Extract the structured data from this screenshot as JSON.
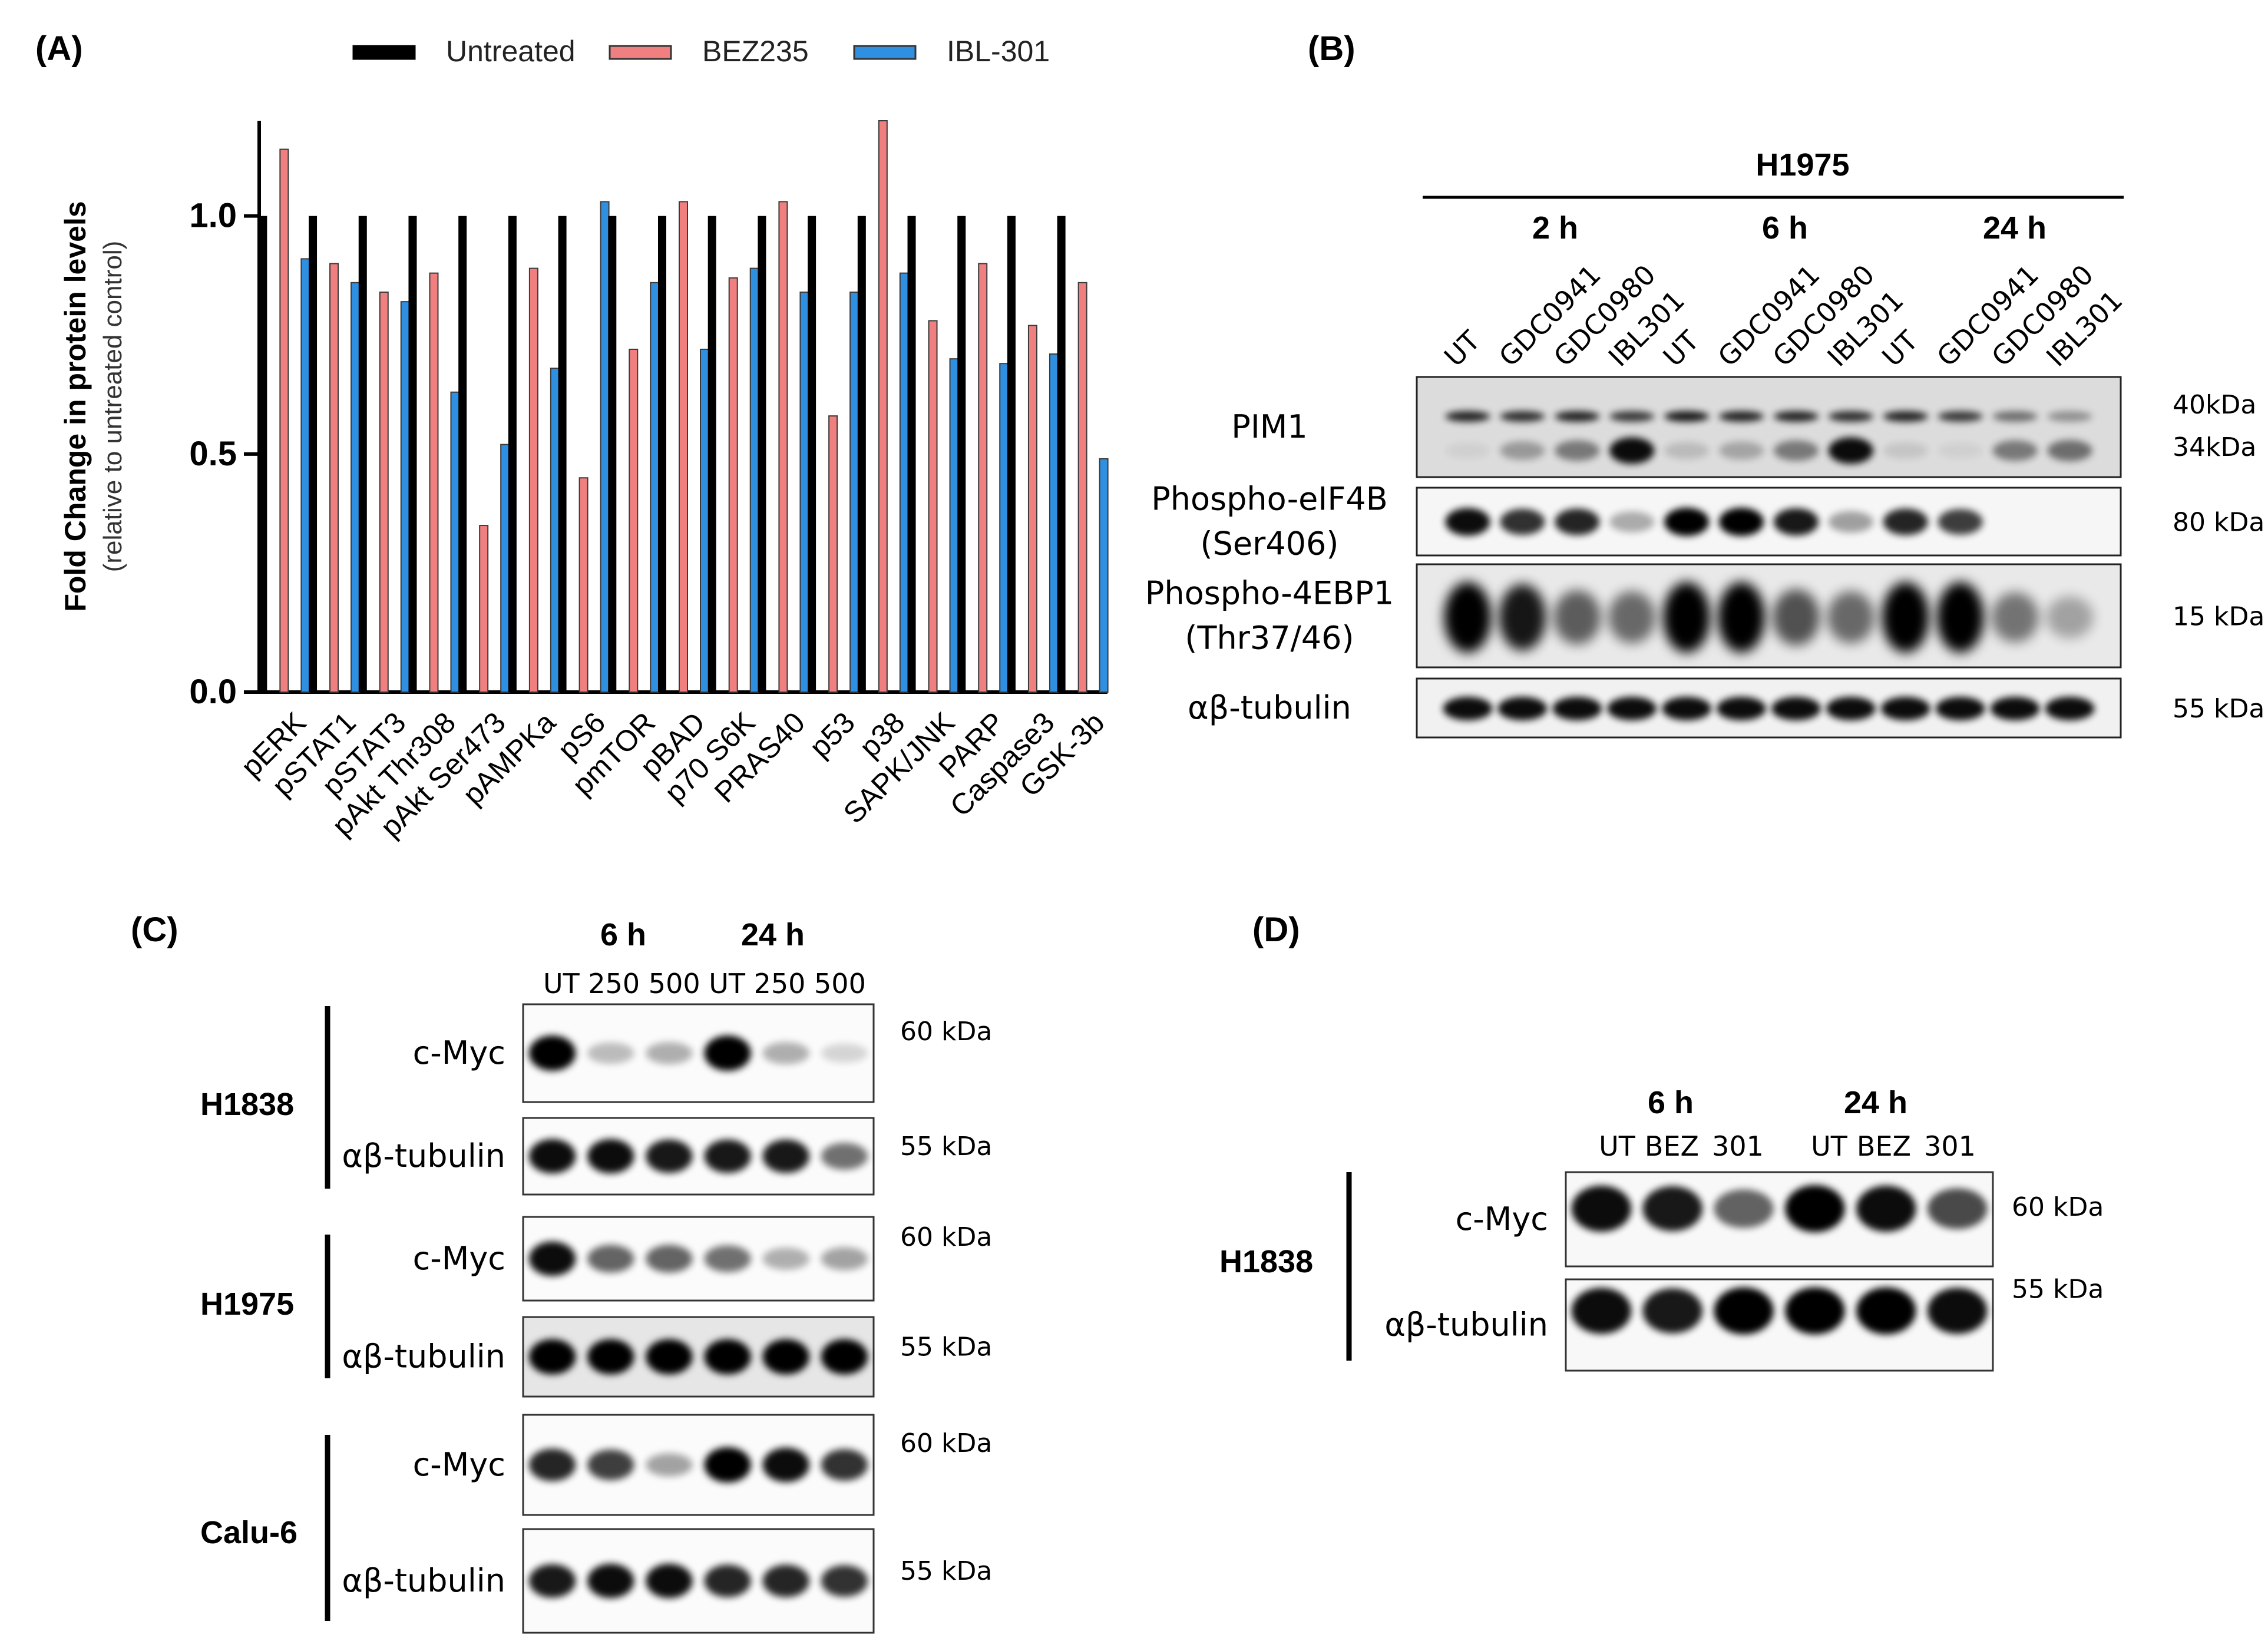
{
  "panels": {
    "A": {
      "label": "(A)"
    },
    "B": {
      "label": "(B)",
      "cell_line": "H1975",
      "timepoints": [
        "2 h",
        "6 h",
        "24 h"
      ],
      "lanes": [
        "UT",
        "GDC0941",
        "GDC0980",
        "IBL301",
        "UT",
        "GDC0941",
        "GDC0980",
        "IBL301",
        "UT",
        "GDC0941",
        "GDC0980",
        "IBL301"
      ],
      "blots": [
        {
          "name": "PIM1",
          "lines": [
            "PIM1"
          ],
          "sizes": [
            "40kDa",
            "34kDa"
          ]
        },
        {
          "name": "Phospho-eIF4B",
          "lines": [
            "Phospho-eIF4B",
            "(Ser406)"
          ],
          "sizes": [
            "80 kDa"
          ]
        },
        {
          "name": "Phospho-4EBP1",
          "lines": [
            "Phospho-4EBP1",
            "(Thr37/46)"
          ],
          "sizes": [
            "15 kDa"
          ]
        },
        {
          "name": "ab-tubulin",
          "lines": [
            "αβ-tubulin"
          ],
          "sizes": [
            "55 kDa"
          ]
        }
      ]
    },
    "C": {
      "label": "(C)",
      "timepoints": [
        "6 h",
        "24 h"
      ],
      "lanes_text": "UT 250 500 UT 250 500",
      "cell_lines": [
        {
          "name": "H1838",
          "blots": [
            {
              "protein": "c-Myc",
              "size": "60 kDa"
            },
            {
              "protein": "αβ-tubulin",
              "size": "55 kDa"
            }
          ]
        },
        {
          "name": "H1975",
          "blots": [
            {
              "protein": "c-Myc",
              "size": "60 kDa"
            },
            {
              "protein": "αβ-tubulin",
              "size": "55 kDa"
            }
          ]
        },
        {
          "name": "Calu-6",
          "blots": [
            {
              "protein": "c-Myc",
              "size": "60 kDa"
            },
            {
              "protein": "αβ-tubulin",
              "size": "55 kDa"
            }
          ]
        }
      ]
    },
    "D": {
      "label": "(D)",
      "cell_line": "H1838",
      "timepoints": [
        "6 h",
        "24 h"
      ],
      "lanes": [
        "UT",
        "BEZ",
        "301",
        "UT",
        "BEZ",
        "301"
      ],
      "blots": [
        {
          "protein": "c-Myc",
          "size": "60 kDa"
        },
        {
          "protein": "αβ-tubulin",
          "size": "55 kDa"
        }
      ]
    }
  },
  "chart_data": {
    "type": "bar",
    "title": "",
    "ylabel": "Fold Change in protein levels",
    "ylabel_sub": "(relative to untreated control)",
    "xlabel": "",
    "ylim": [
      0,
      1.2
    ],
    "yticks": [
      0.0,
      0.5,
      1.0
    ],
    "ytick_labels": [
      "0.0",
      "0.5",
      "1.0"
    ],
    "legend_position": "top",
    "categories": [
      "pERK",
      "pSTAT1",
      "pSTAT3",
      "pAkt Thr308",
      "pAkt Ser473",
      "pAMPKa",
      "pS6",
      "pmTOR",
      "pBAD",
      "p70 S6K",
      "PRAS40",
      "p53",
      "p38",
      "SAPK/JNK",
      "PARP",
      "Caspase3",
      "GSK-3b"
    ],
    "series": [
      {
        "name": "Untreated",
        "color": "#000000",
        "values": [
          1.0,
          1.0,
          1.0,
          1.0,
          1.0,
          1.0,
          1.0,
          1.0,
          1.0,
          1.0,
          1.0,
          1.0,
          1.0,
          1.0,
          1.0,
          1.0,
          1.0
        ]
      },
      {
        "name": "BEZ235",
        "color": "#f08080",
        "values": [
          1.14,
          0.9,
          0.84,
          0.88,
          0.35,
          0.89,
          0.45,
          0.72,
          1.03,
          0.87,
          1.03,
          0.58,
          1.2,
          0.78,
          0.9,
          0.77,
          0.86
        ]
      },
      {
        "name": "IBL-301",
        "color": "#2f8fe0",
        "values": [
          0.91,
          0.86,
          0.82,
          0.63,
          0.52,
          0.68,
          1.03,
          0.86,
          0.72,
          0.89,
          0.84,
          0.84,
          0.88,
          0.7,
          0.69,
          0.71,
          0.49
        ]
      }
    ]
  }
}
